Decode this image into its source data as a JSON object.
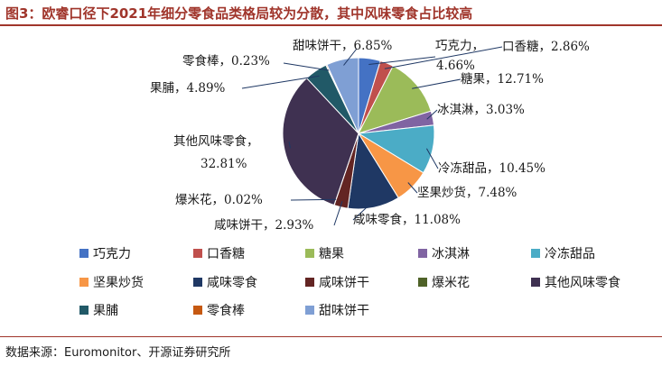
{
  "title": "图3：欧睿口径下2021年细分零食品类格局较为分散，其中风味零食占比较高",
  "source": "数据来源：Euromonitor、开源证券研究所",
  "chart_data": {
    "type": "pie",
    "series": [
      {
        "name": "巧克力",
        "value": 4.66,
        "color": "#4472c4",
        "label": "巧克力，\n4.66%"
      },
      {
        "name": "口香糖",
        "value": 2.86,
        "color": "#c0504d",
        "label": "口香糖，2.86%"
      },
      {
        "name": "糖果",
        "value": 12.71,
        "color": "#9bbb59",
        "label": "糖果，12.71%"
      },
      {
        "name": "冰淇淋",
        "value": 3.03,
        "color": "#8064a2",
        "label": "冰淇淋，3.03%"
      },
      {
        "name": "冷冻甜品",
        "value": 10.45,
        "color": "#4bacc6",
        "label": "冷冻甜品，10.45%"
      },
      {
        "name": "坚果炒货",
        "value": 7.48,
        "color": "#f79646",
        "label": "坚果炒货，7.48%"
      },
      {
        "name": "咸味零食",
        "value": 11.08,
        "color": "#1f3864",
        "label": "咸味零食，11.08%"
      },
      {
        "name": "咸味饼干",
        "value": 2.93,
        "color": "#632523",
        "label": "咸味饼干，2.93%"
      },
      {
        "name": "爆米花",
        "value": 0.02,
        "color": "#4f6228",
        "label": "爆米花，0.02%"
      },
      {
        "name": "其他风味零食",
        "value": 32.81,
        "color": "#3f3151",
        "label": "其他风味零食，\n32.81%"
      },
      {
        "name": "果脯",
        "value": 4.89,
        "color": "#215967",
        "label": "果脯，4.89%"
      },
      {
        "name": "零食棒",
        "value": 0.23,
        "color": "#c65911",
        "label": "零食棒，0.23%"
      },
      {
        "name": "甜味饼干",
        "value": 6.85,
        "color": "#7f9fd4",
        "label": "甜味饼干，6.85%"
      }
    ],
    "legend_position": "bottom"
  }
}
